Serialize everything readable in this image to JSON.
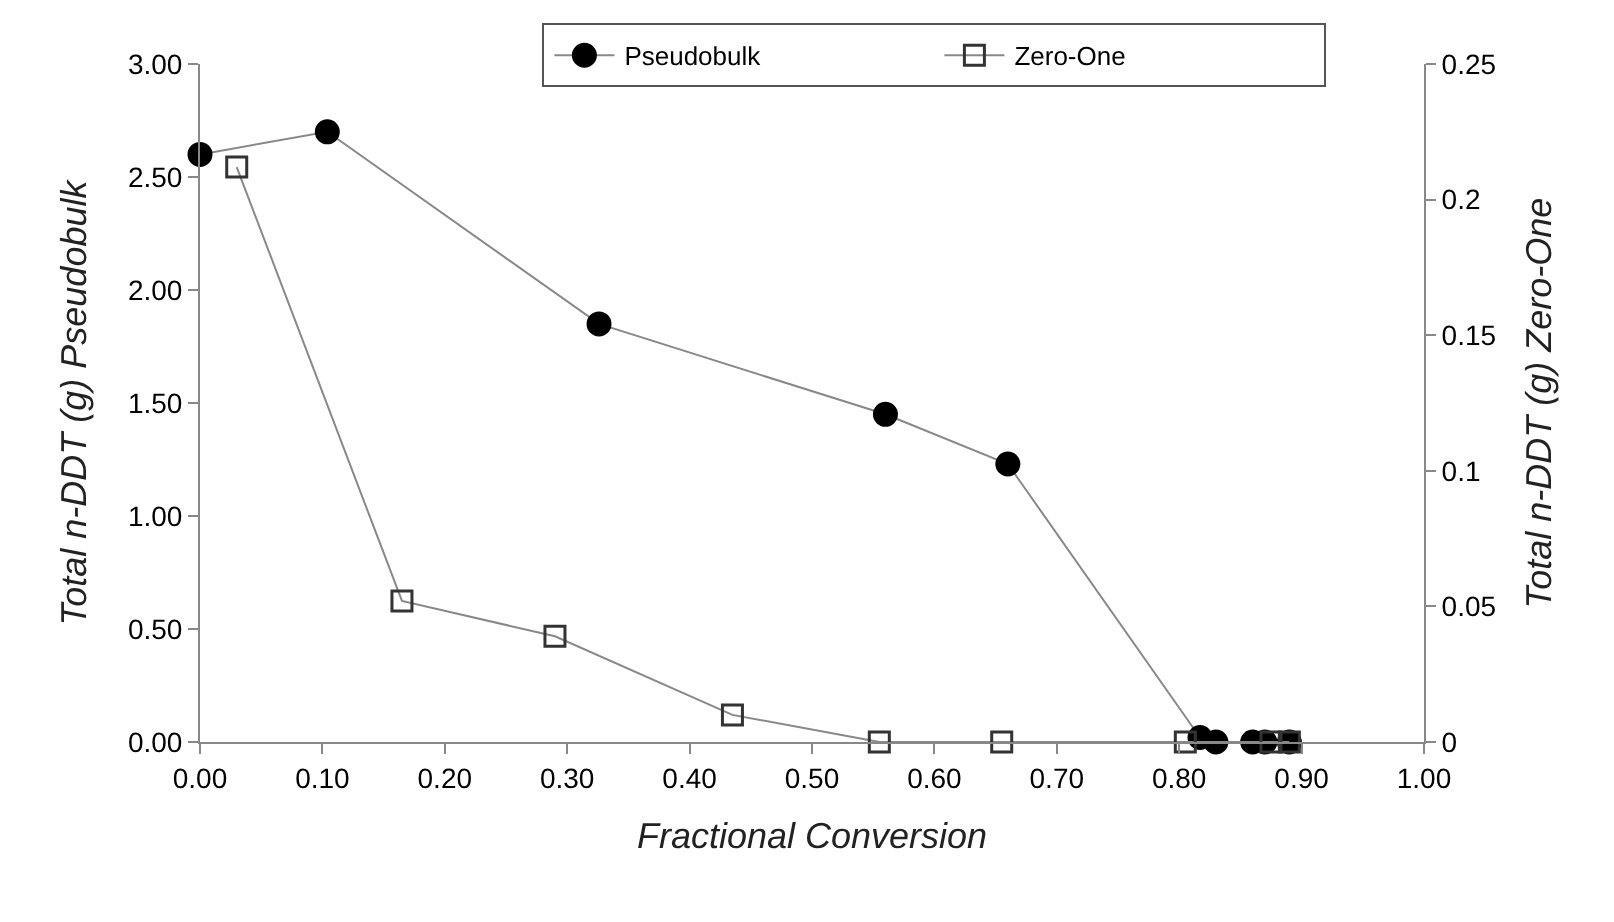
{
  "chart_data": {
    "type": "line",
    "xlabel": "Fractional Conversion",
    "ylabel": "Total n-DDT (g) Pseudobulk",
    "y2label": "Total n-DDT (g) Zero-One",
    "xlim": [
      0,
      1
    ],
    "xticks": [
      {
        "value": 0,
        "label": "0.00"
      },
      {
        "value": 0.1,
        "label": "0.10"
      },
      {
        "value": 0.2,
        "label": "0.20"
      },
      {
        "value": 0.3,
        "label": "0.30"
      },
      {
        "value": 0.4,
        "label": "0.40"
      },
      {
        "value": 0.5,
        "label": "0.50"
      },
      {
        "value": 0.6,
        "label": "0.60"
      },
      {
        "value": 0.7,
        "label": "0.70"
      },
      {
        "value": 0.8,
        "label": "0.80"
      },
      {
        "value": 0.9,
        "label": "0.90"
      },
      {
        "value": 1,
        "label": "1.00"
      }
    ],
    "ylim": [
      0,
      3
    ],
    "yticks": [
      {
        "value": 0,
        "label": "0.00"
      },
      {
        "value": 0.5,
        "label": "0.50"
      },
      {
        "value": 1,
        "label": "1.00"
      },
      {
        "value": 1.5,
        "label": "1.50"
      },
      {
        "value": 2,
        "label": "2.00"
      },
      {
        "value": 2.5,
        "label": "2.50"
      },
      {
        "value": 3,
        "label": "3.00"
      }
    ],
    "y2lim": [
      0,
      0.25
    ],
    "y2ticks": [
      0,
      0.05,
      0.1,
      0.15,
      0.2,
      0.25
    ],
    "series": [
      {
        "name": "Pseudobulk",
        "color": "#000000",
        "marker": "circle",
        "x": [
          0.0,
          0.104,
          0.326,
          0.56,
          0.66,
          0.817,
          0.83,
          0.86,
          0.87,
          0.89
        ],
        "values": [
          2.6,
          2.7,
          1.85,
          1.45,
          1.23,
          0.02,
          0,
          0,
          0,
          0
        ]
      },
      {
        "name": "Zero-One",
        "color": "#333333",
        "marker": "square",
        "axis": "y2",
        "x": [
          0.03,
          0.165,
          0.29,
          0.435,
          0.555,
          0.655,
          0.805,
          0.875,
          0.89
        ],
        "values": [
          0.212,
          0.052,
          0.039,
          0.01,
          0,
          0,
          0,
          0,
          0
        ]
      }
    ],
    "legend": "top",
    "line_style": "solid"
  }
}
